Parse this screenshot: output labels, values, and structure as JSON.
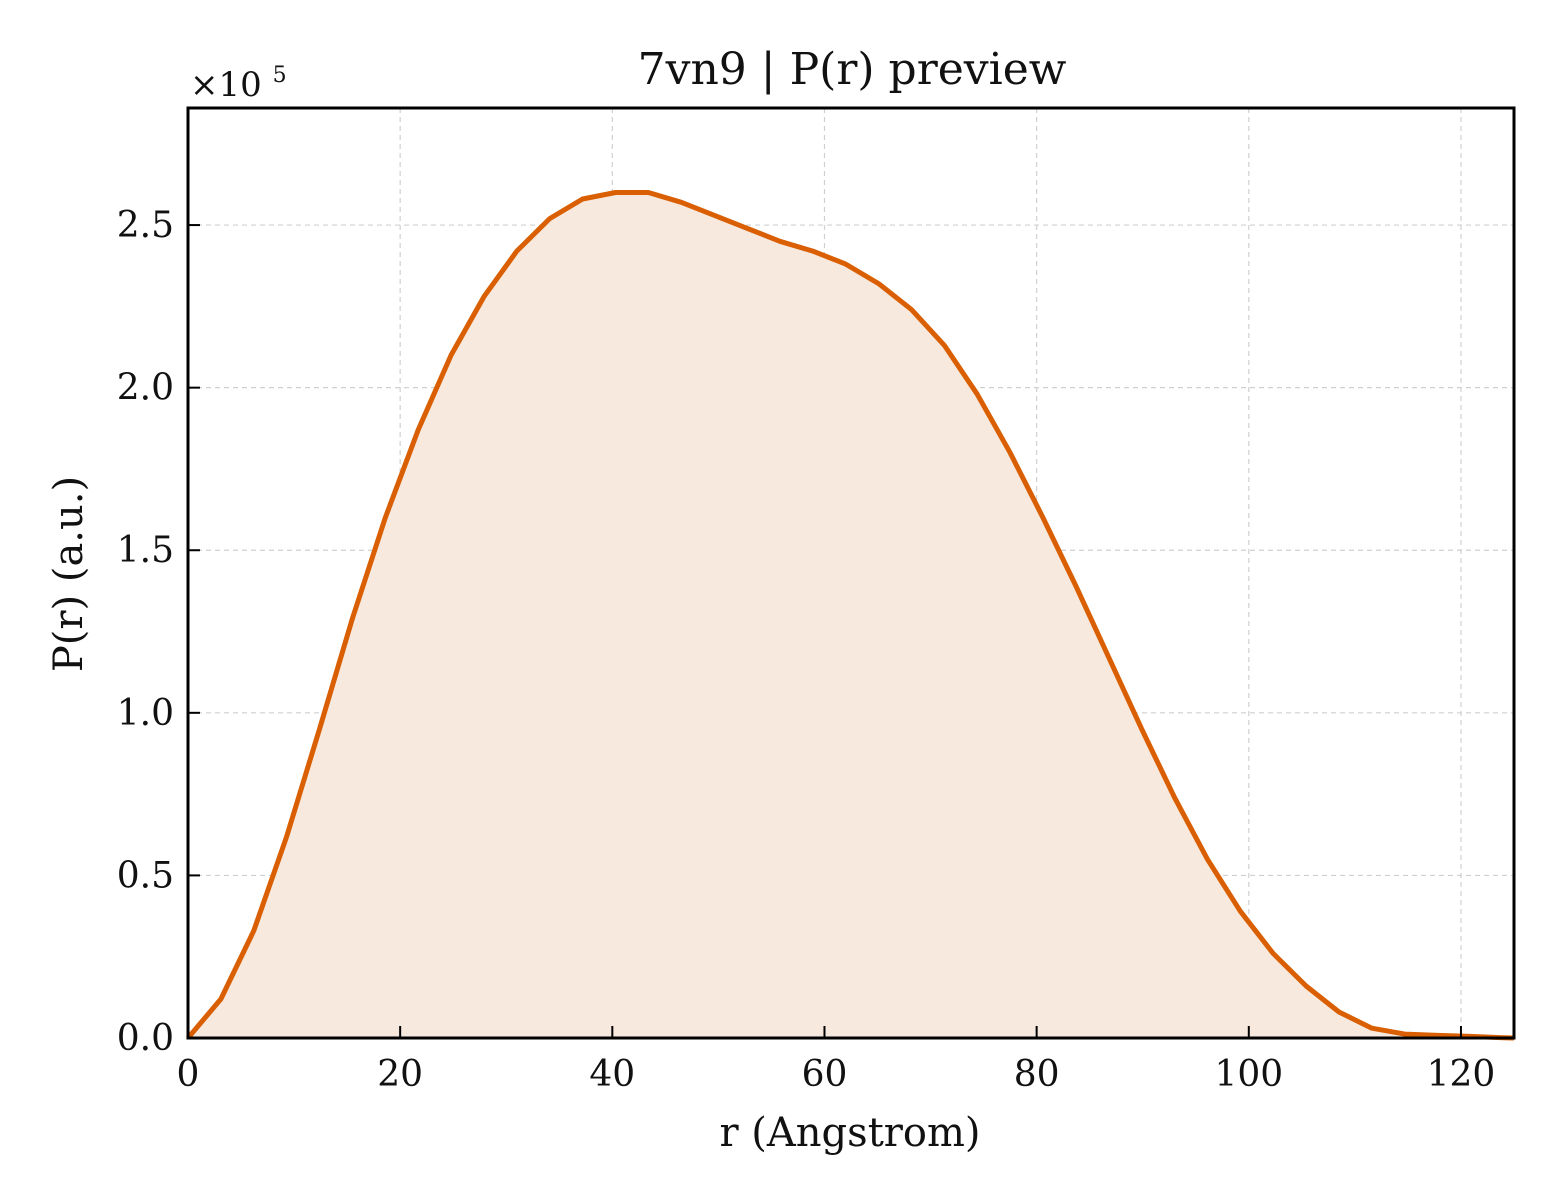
{
  "chart_data": {
    "type": "area",
    "title": "7vn9 | P(r) preview",
    "xlabel": "r (Angstrom)",
    "ylabel": "P(r) (a.u.)",
    "y_multiplier_label": "×10",
    "y_multiplier_exponent": "5",
    "xlim": [
      0,
      125
    ],
    "ylim": [
      0,
      2.86
    ],
    "x_ticks": [
      0,
      20,
      40,
      60,
      80,
      100,
      120
    ],
    "x_tick_labels": [
      "0",
      "20",
      "40",
      "60",
      "80",
      "100",
      "120"
    ],
    "y_ticks": [
      0,
      0.5,
      1.0,
      1.5,
      2.0,
      2.5
    ],
    "y_tick_labels": [
      "0.0",
      "0.5",
      "1.0",
      "1.5",
      "2.0",
      "2.5"
    ],
    "grid": true,
    "colors": {
      "line": "#d95f02",
      "fill": "#f8e9df",
      "grid": "#d0d0d0",
      "axes": "#000000"
    },
    "series": [
      {
        "x": [
          0,
          3.1,
          6.2,
          9.3,
          12.4,
          15.5,
          18.6,
          21.7,
          24.8,
          27.9,
          31.0,
          34.1,
          37.2,
          40.3,
          43.4,
          46.5,
          49.6,
          52.7,
          55.8,
          58.9,
          62.0,
          65.1,
          68.2,
          71.3,
          74.4,
          77.5,
          80.6,
          83.7,
          86.8,
          89.9,
          93.0,
          96.1,
          99.2,
          102.3,
          105.4,
          108.5,
          111.6,
          114.7,
          117.8,
          120.9,
          124.0,
          125.0
        ],
        "y": [
          0.0,
          0.12,
          0.33,
          0.62,
          0.95,
          1.29,
          1.6,
          1.87,
          2.1,
          2.28,
          2.42,
          2.52,
          2.58,
          2.6,
          2.6,
          2.57,
          2.53,
          2.49,
          2.45,
          2.42,
          2.38,
          2.32,
          2.24,
          2.13,
          1.98,
          1.8,
          1.6,
          1.39,
          1.17,
          0.95,
          0.74,
          0.55,
          0.39,
          0.26,
          0.16,
          0.08,
          0.03,
          0.012,
          0.008,
          0.005,
          0.001,
          0.0
        ]
      }
    ]
  }
}
